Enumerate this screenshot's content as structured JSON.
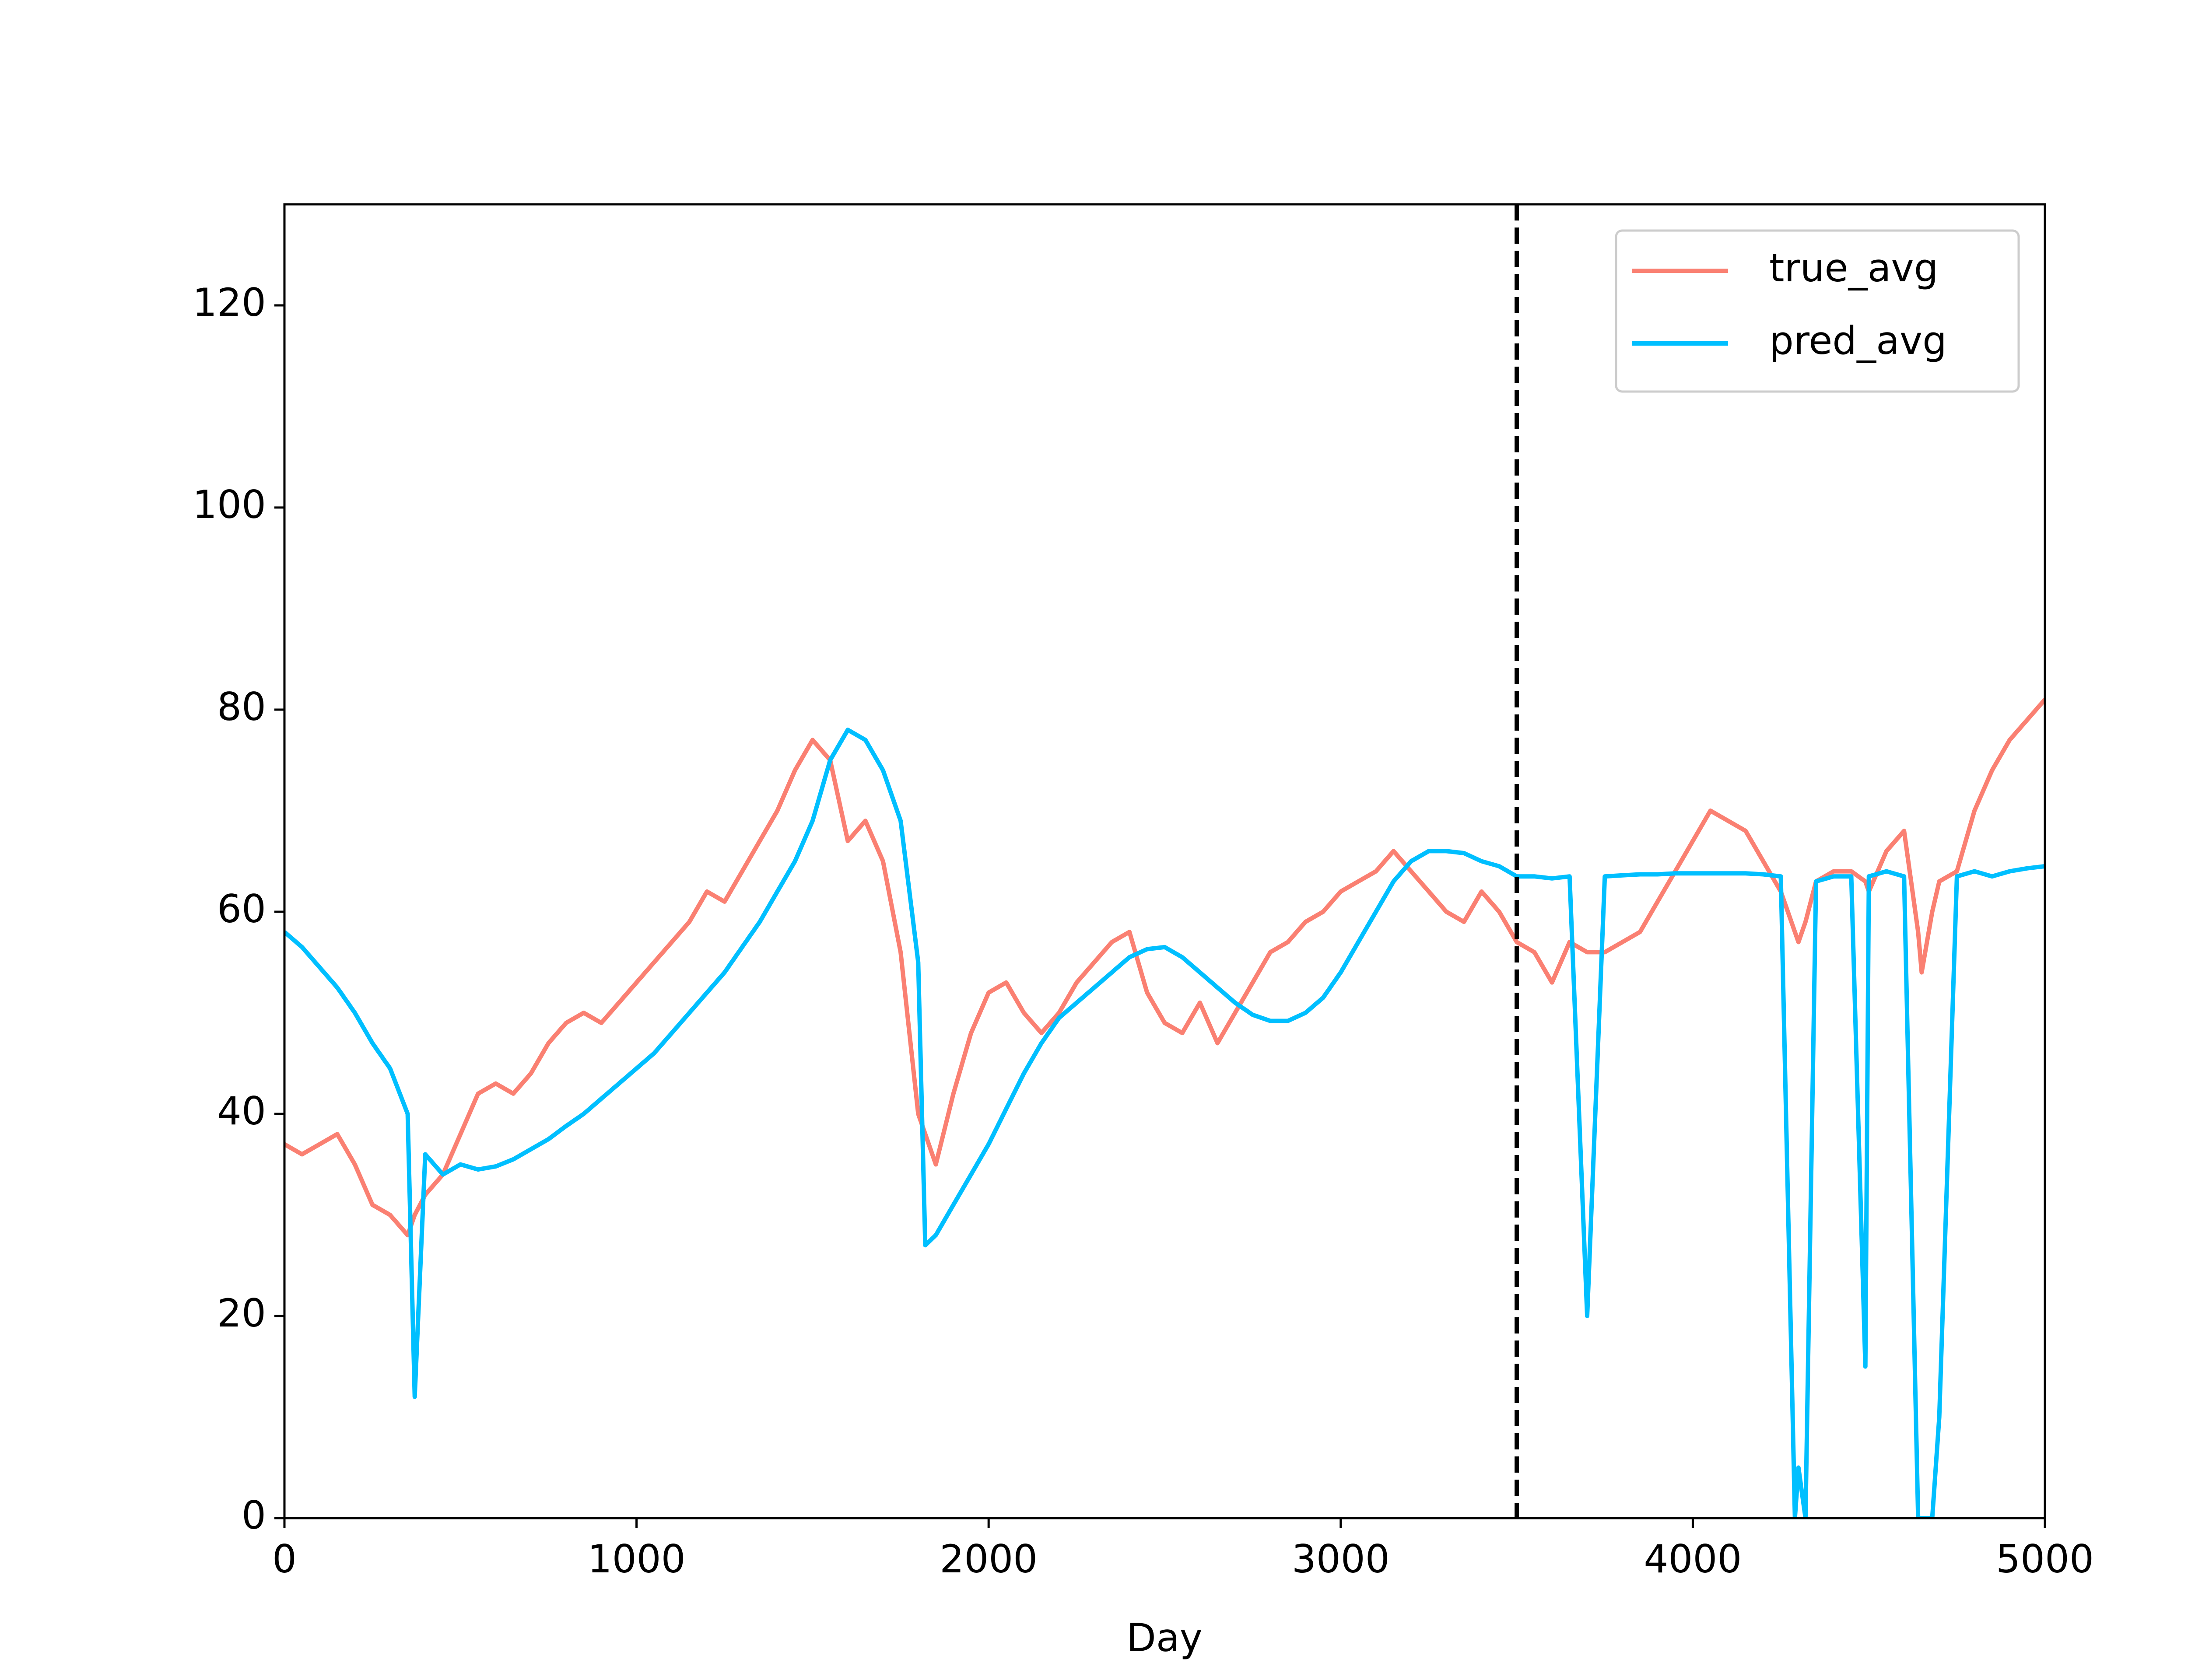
{
  "chart_data": {
    "type": "line",
    "xlabel": "Day",
    "x": [
      0,
      50,
      100,
      150,
      200,
      250,
      300,
      350,
      370,
      400,
      450,
      500,
      550,
      600,
      650,
      700,
      750,
      800,
      850,
      900,
      950,
      1000,
      1050,
      1100,
      1150,
      1200,
      1250,
      1300,
      1350,
      1400,
      1450,
      1500,
      1550,
      1600,
      1650,
      1700,
      1750,
      1800,
      1820,
      1850,
      1900,
      1950,
      2000,
      2050,
      2100,
      2150,
      2200,
      2250,
      2300,
      2350,
      2400,
      2450,
      2500,
      2550,
      2600,
      2650,
      2700,
      2750,
      2800,
      2850,
      2900,
      2950,
      3000,
      3050,
      3100,
      3150,
      3200,
      3250,
      3300,
      3350,
      3400,
      3450,
      3500,
      3550,
      3600,
      3650,
      3700,
      3750,
      3800,
      3850,
      3900,
      3950,
      4000,
      4050,
      4100,
      4150,
      4200,
      4250,
      4290,
      4300,
      4320,
      4350,
      4400,
      4450,
      4490,
      4500,
      4550,
      4600,
      4640,
      4650,
      4680,
      4700,
      4750,
      4800,
      4850,
      4900,
      4950,
      5000
    ],
    "series": [
      {
        "name": "true_avg",
        "color": "#fa8072",
        "values": [
          37,
          36,
          37,
          38,
          35,
          31,
          30,
          28,
          30,
          32,
          34,
          38,
          42,
          43,
          42,
          44,
          47,
          49,
          50,
          49,
          51,
          53,
          55,
          57,
          59,
          62,
          61,
          64,
          67,
          70,
          74,
          77,
          75,
          67,
          69,
          65,
          56,
          40,
          38,
          35,
          42,
          48,
          52,
          53,
          50,
          48,
          50,
          53,
          55,
          57,
          58,
          52,
          49,
          48,
          51,
          47,
          50,
          53,
          56,
          57,
          59,
          60,
          62,
          63,
          64,
          66,
          64,
          62,
          60,
          59,
          62,
          60,
          57,
          56,
          53,
          57,
          56,
          56,
          57,
          58,
          61,
          64,
          67,
          70,
          69,
          68,
          65,
          62,
          58,
          57,
          59,
          63,
          64,
          64,
          63,
          62,
          66,
          68,
          58,
          54,
          60,
          63,
          64,
          70,
          74,
          77,
          79,
          81
        ]
      },
      {
        "name": "pred_avg",
        "color": "#00bfff",
        "values": [
          58,
          56.5,
          54.5,
          52.5,
          50,
          47,
          44.5,
          40,
          12,
          36,
          34,
          35,
          34.5,
          34.8,
          35.5,
          36.5,
          37.5,
          38.8,
          40,
          41.5,
          43,
          44.5,
          46,
          48,
          50,
          52,
          54,
          56.5,
          59,
          62,
          65,
          69,
          75,
          78,
          77,
          74,
          69,
          55,
          27,
          28,
          31,
          34,
          37,
          40.5,
          44,
          47,
          49.5,
          51,
          52.5,
          54,
          55.5,
          56.3,
          56.5,
          55.5,
          54,
          52.5,
          51,
          49.8,
          49.2,
          49.2,
          50,
          51.5,
          54,
          57,
          60,
          63,
          65,
          66,
          66,
          65.8,
          65,
          64.5,
          63.5,
          63.5,
          63.3,
          63.5,
          20,
          63.5,
          63.6,
          63.7,
          63.7,
          63.8,
          63.8,
          63.8,
          63.8,
          63.8,
          63.7,
          63.5,
          0,
          5,
          0,
          63,
          63.5,
          63.5,
          15,
          63.5,
          64,
          63.5,
          0,
          0,
          0,
          10,
          63.5,
          64,
          63.5,
          64,
          64.3,
          64.5
        ]
      }
    ],
    "xlim": [
      0,
      5000
    ],
    "xticks": [
      0,
      1000,
      2000,
      3000,
      4000,
      5000
    ],
    "ylim": [
      0,
      130
    ],
    "yticks": [
      0,
      20,
      40,
      60,
      80,
      100,
      120
    ],
    "grid": false,
    "legend": "upper right",
    "vlines": [
      {
        "x": 3500,
        "color": "#000000",
        "style": "dashed"
      }
    ]
  }
}
